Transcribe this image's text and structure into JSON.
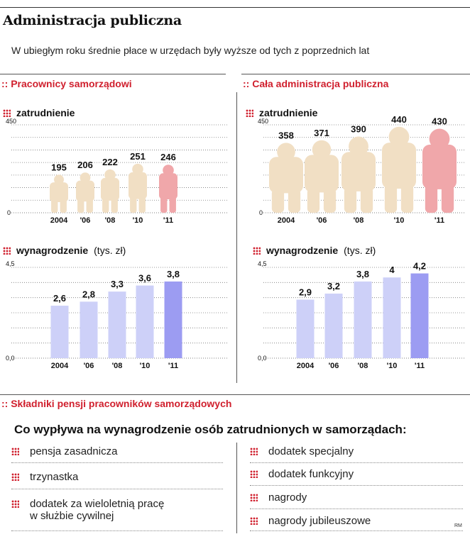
{
  "header": {
    "title": "Administracja publiczna",
    "subtitle": "W ubiegłym roku średnie płace w urzędach były wyższe od tych z poprzednich lat"
  },
  "sections": {
    "left": ":: Pracownicy samorządowi",
    "right": ":: Cała administracja publiczna",
    "components": ":: Składniki pensji pracowników samorządowych"
  },
  "labels": {
    "employment": "zatrudnienie",
    "salary": "wynagrodzenie",
    "salary_unit": "(tys. zł)"
  },
  "colors": {
    "accent": "#d0202e",
    "person": "#f1dfc4",
    "person_highlight": "#f0a7aa",
    "bar": "#cdd0f8",
    "bar_highlight": "#9c9cf2"
  },
  "chart_data": [
    {
      "id": "left_employment",
      "type": "bar",
      "title": "zatrudnienie",
      "categories": [
        "2004",
        "'06",
        "'08",
        "'10",
        "'11"
      ],
      "values": [
        195,
        206,
        222,
        251,
        246
      ],
      "labels": [
        "195",
        "206",
        "222",
        "251",
        "246"
      ],
      "ylim": [
        0,
        450
      ],
      "yticks": [
        "0",
        "450"
      ],
      "grid": true,
      "highlight_last": true
    },
    {
      "id": "right_employment",
      "type": "bar",
      "title": "zatrudnienie",
      "categories": [
        "2004",
        "'06",
        "'08",
        "'10",
        "'11"
      ],
      "values": [
        358,
        371,
        390,
        440,
        430
      ],
      "labels": [
        "358",
        "371",
        "390",
        "440",
        "430"
      ],
      "ylim": [
        0,
        450
      ],
      "yticks": [
        "0",
        "450"
      ],
      "grid": true,
      "highlight_last": true
    },
    {
      "id": "left_salary",
      "type": "bar",
      "title": "wynagrodzenie",
      "categories": [
        "2004",
        "'06",
        "'08",
        "'10",
        "'11"
      ],
      "values": [
        2.6,
        2.8,
        3.3,
        3.6,
        3.8
      ],
      "labels": [
        "2,6",
        "2,8",
        "3,3",
        "3,6",
        "3,8"
      ],
      "ylim": [
        0,
        4.5
      ],
      "yticks": [
        "0,0",
        "4,5"
      ],
      "grid": true,
      "highlight_last": true
    },
    {
      "id": "right_salary",
      "type": "bar",
      "title": "wynagrodzenie",
      "categories": [
        "2004",
        "'06",
        "'08",
        "'10",
        "'11"
      ],
      "values": [
        2.9,
        3.2,
        3.8,
        4,
        4.2
      ],
      "labels": [
        "2,9",
        "3,2",
        "3,8",
        "4",
        "4,2"
      ],
      "ylim": [
        0,
        4.5
      ],
      "yticks": [
        "0,0",
        "4,5"
      ],
      "grid": true,
      "highlight_last": true
    }
  ],
  "components": {
    "title": "Co wypływa na wynagrodzenie osób zatrudnionych w samorządach:",
    "left": [
      "pensja zasadnicza",
      "trzynastka",
      "dodatek za wieloletnią pracę",
      "w służbie cywilnej"
    ],
    "right": [
      "dodatek specjalny",
      "dodatek funkcyjny",
      "nagrody",
      "nagrody jubileuszowe"
    ]
  },
  "credit": "RM"
}
